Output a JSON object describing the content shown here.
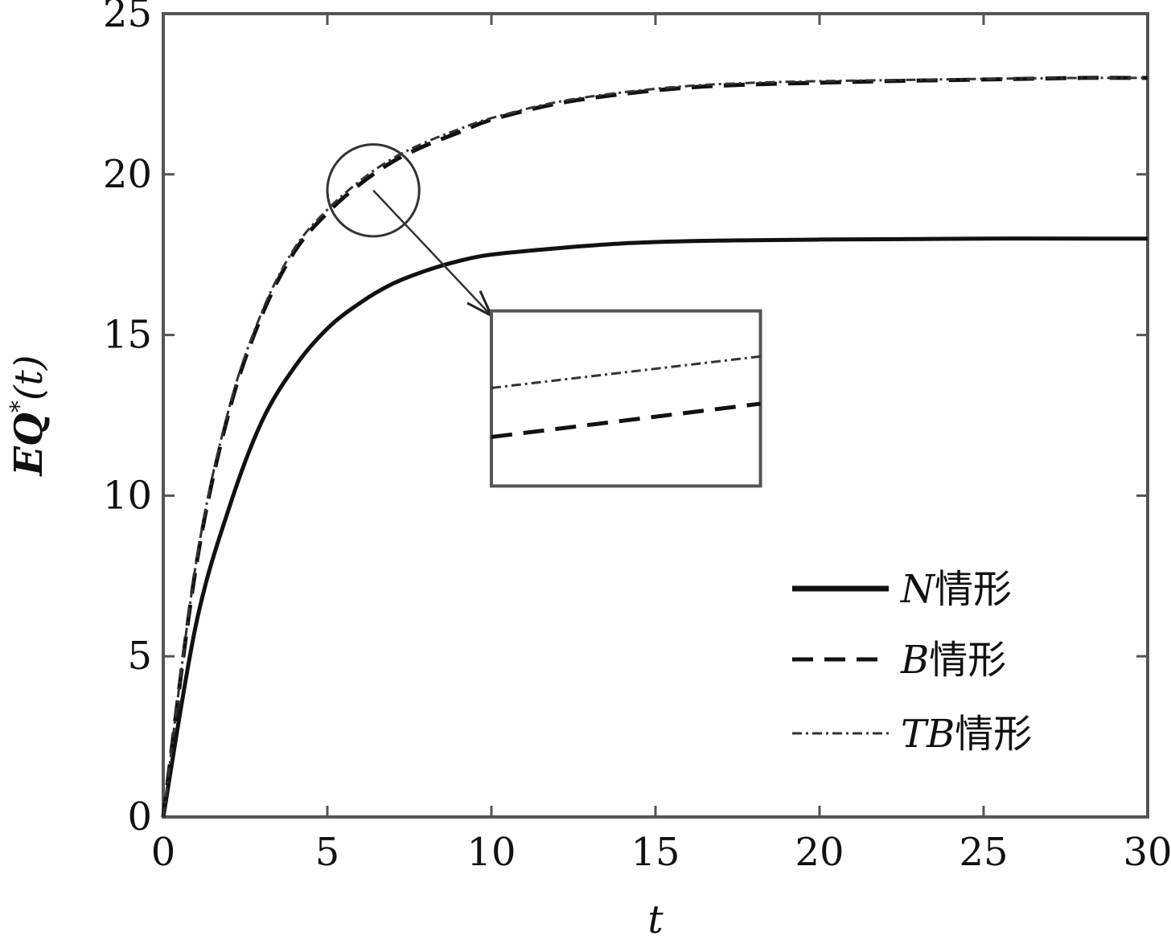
{
  "chart_data": {
    "type": "line",
    "title": "",
    "xlabel": "t",
    "ylabel_main": "EQ",
    "ylabel_sup": "*",
    "ylabel_tail": "(t)",
    "xlim": [
      0,
      30
    ],
    "ylim": [
      0,
      25
    ],
    "xticks": [
      "0",
      "5",
      "10",
      "15",
      "20",
      "25",
      "30"
    ],
    "yticks": [
      "0",
      "5",
      "10",
      "15",
      "20",
      "25"
    ],
    "grid": false,
    "legend_position": "bottom-right",
    "series": [
      {
        "name_italic": "N",
        "name_suffix": "情形",
        "style": "solid",
        "x": [
          0,
          1,
          2,
          3,
          4,
          5,
          6,
          7,
          8,
          9,
          10,
          12,
          14,
          16,
          18,
          20,
          22,
          25,
          28,
          30
        ],
        "y": [
          0,
          6.0,
          9.6,
          12.3,
          14.0,
          15.2,
          16.0,
          16.6,
          17.0,
          17.3,
          17.5,
          17.7,
          17.85,
          17.92,
          17.95,
          17.97,
          17.98,
          18.0,
          18.0,
          18.0
        ]
      },
      {
        "name_italic": "B",
        "name_suffix": "情形",
        "style": "dashed",
        "x": [
          0,
          1,
          2,
          3,
          4,
          5,
          6,
          7,
          8,
          9,
          10,
          12,
          14,
          16,
          18,
          20,
          22,
          25,
          28,
          30
        ],
        "y": [
          0,
          7.8,
          12.6,
          15.6,
          17.6,
          18.8,
          19.7,
          20.4,
          20.9,
          21.3,
          21.7,
          22.2,
          22.5,
          22.7,
          22.8,
          22.85,
          22.9,
          22.95,
          23.0,
          23.0
        ]
      },
      {
        "name_italic": "TB",
        "name_suffix": "情形",
        "style": "dashdot",
        "x": [
          0,
          1,
          2,
          3,
          4,
          5,
          6,
          7,
          8,
          9,
          10,
          12,
          14,
          16,
          18,
          20,
          22,
          25,
          28,
          30
        ],
        "y": [
          0,
          7.9,
          12.7,
          15.7,
          17.7,
          18.9,
          19.8,
          20.5,
          21.0,
          21.4,
          21.75,
          22.25,
          22.55,
          22.75,
          22.85,
          22.9,
          22.93,
          22.97,
          23.0,
          23.0
        ]
      }
    ],
    "annotation": {
      "circle_center": [
        6.4,
        19.5
      ],
      "circle_radius_x": 1.4,
      "circle_radius_y": 1.4,
      "arrow_from": [
        6.4,
        19.5
      ],
      "arrow_to": [
        10.0,
        15.6
      ],
      "inset_box": {
        "x0": 10.0,
        "x1": 18.2,
        "y0": 10.3,
        "y1": 15.75
      }
    }
  }
}
